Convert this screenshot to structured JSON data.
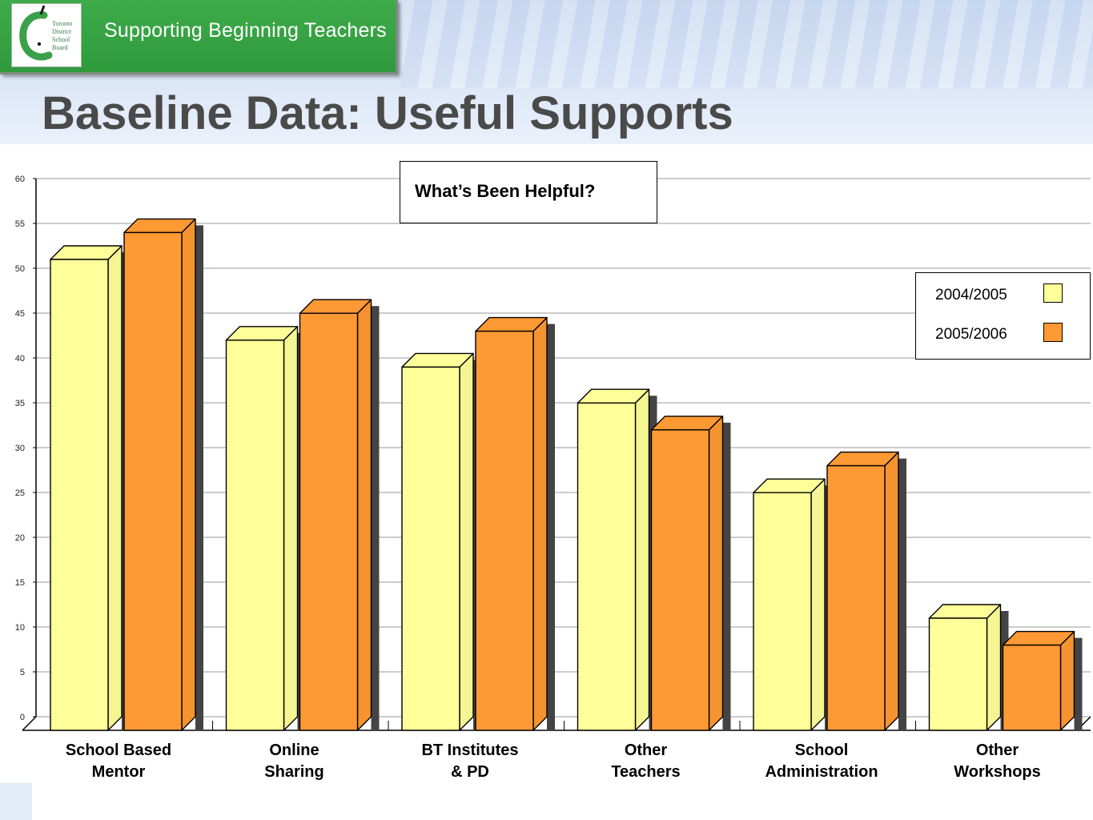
{
  "header": {
    "banner_title": "Supporting Beginning Teachers",
    "logo_text": "Toronto District School Board",
    "logo_icon": "apple-c-logo-icon"
  },
  "page_title": "Baseline Data:  Useful Supports",
  "colors": {
    "series_2004": "#ffff99",
    "series_2005": "#ff9933",
    "shadow": "#444444",
    "banner_green": "#36a243",
    "title_gray": "#4a4a4a"
  },
  "chart_data": {
    "type": "bar",
    "title": "What’s Been Helpful?",
    "categories": [
      "School Based\nMentor",
      "Online\nSharing",
      "BT Institutes\n& PD",
      "Other\nTeachers",
      "School\nAdministration",
      "Other\nWorkshops"
    ],
    "series": [
      {
        "name": "2004/2005",
        "values": [
          52.5,
          43.5,
          40.5,
          36.5,
          26.5,
          12.5
        ]
      },
      {
        "name": "2005/2006",
        "values": [
          55.5,
          46.5,
          44.5,
          33.5,
          29.5,
          9.5
        ]
      }
    ],
    "yticks": [
      "0",
      "5",
      "10",
      "15",
      "20",
      "25",
      "30",
      "35",
      "40",
      "45",
      "50",
      "55",
      "60"
    ],
    "ylim": [
      0,
      60
    ],
    "grid": true,
    "legend_position": "right",
    "style": "3d-bar"
  }
}
